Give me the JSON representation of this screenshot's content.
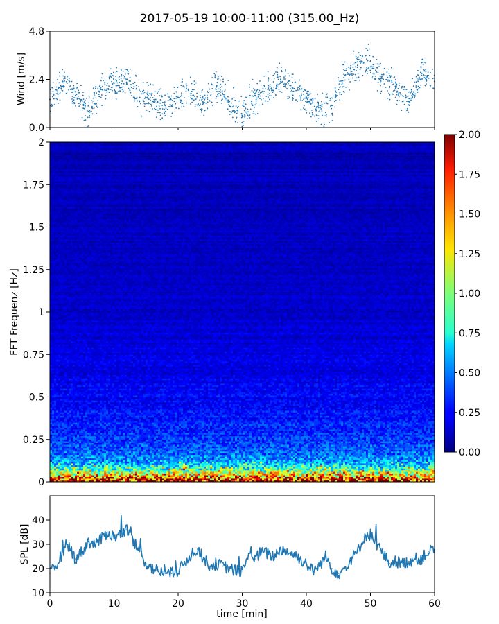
{
  "figure": {
    "title": "2017-05-19 10:00-11:00 (315.00_Hz)"
  },
  "chart_data": [
    {
      "type": "scatter",
      "name": "wind",
      "ylabel": "Wind [m/s]",
      "xlim": [
        0,
        60
      ],
      "ylim": [
        0,
        4.8
      ],
      "yticks": [
        0.0,
        2.4,
        4.8
      ],
      "ytick_labels": [
        "0.0",
        "2.4",
        "4.8"
      ],
      "xticks": [
        0,
        10,
        20,
        30,
        40,
        50,
        60
      ],
      "marker_color": "#1f77b4",
      "x": [
        0,
        2,
        4,
        6,
        8,
        10,
        12,
        14,
        16,
        18,
        20,
        22,
        24,
        26,
        28,
        30,
        32,
        34,
        36,
        38,
        40,
        42,
        44,
        46,
        48,
        50,
        52,
        54,
        56,
        58,
        60
      ],
      "y": [
        1.4,
        2.3,
        1.6,
        0.8,
        1.9,
        2.2,
        2.4,
        1.5,
        1.3,
        1.1,
        1.5,
        1.7,
        1.2,
        2.1,
        1.3,
        0.6,
        1.6,
        1.9,
        2.4,
        1.8,
        1.5,
        0.8,
        1.1,
        2.6,
        3.1,
        3.3,
        2.4,
        2.0,
        1.3,
        2.7,
        2.3
      ]
    },
    {
      "type": "heatmap",
      "name": "spectrogram",
      "ylabel": "FFT Frequenz [Hz]",
      "xlim": [
        0,
        60
      ],
      "ylim": [
        0,
        2
      ],
      "yticks": [
        0,
        0.25,
        0.5,
        0.75,
        1,
        1.25,
        1.5,
        1.75,
        2
      ],
      "ytick_labels": [
        "0",
        "0.25",
        "0.5",
        "0.75",
        "1",
        "1.25",
        "1.5",
        "1.75",
        "2"
      ],
      "colormap": "jet",
      "color_range": [
        0.0,
        2.0
      ],
      "colorbar_ticks": [
        "0.00",
        "0.25",
        "0.50",
        "0.75",
        "1.00",
        "1.25",
        "1.50",
        "1.75",
        "2.00"
      ],
      "colorbar_values": [
        0.0,
        0.25,
        0.5,
        0.75,
        1.0,
        1.25,
        1.5,
        1.75,
        2.0
      ],
      "freq_profile": {
        "freq_hz": [
          0.0,
          0.02,
          0.05,
          0.08,
          0.1,
          0.15,
          0.2,
          0.3,
          0.4,
          0.5,
          0.75,
          1.0,
          1.5,
          2.0
        ],
        "mean_value": [
          1.7,
          1.5,
          1.05,
          0.8,
          0.6,
          0.45,
          0.38,
          0.3,
          0.26,
          0.22,
          0.17,
          0.14,
          0.12,
          0.1
        ]
      }
    },
    {
      "type": "line",
      "name": "spl",
      "xlabel": "time [min]",
      "ylabel": "SPL [dB]",
      "xlim": [
        0,
        60
      ],
      "ylim": [
        10,
        50
      ],
      "yticks": [
        10,
        20,
        30,
        40
      ],
      "ytick_labels": [
        "10",
        "20",
        "30",
        "40"
      ],
      "xticks": [
        0,
        10,
        20,
        30,
        40,
        50,
        60
      ],
      "xtick_labels": [
        "0",
        "10",
        "20",
        "30",
        "40",
        "50",
        "60"
      ],
      "line_color": "#1f77b4",
      "x": [
        0,
        1,
        2,
        3,
        4,
        5,
        6,
        7,
        8,
        9,
        10,
        11,
        12,
        13,
        14,
        15,
        16,
        17,
        18,
        19,
        20,
        21,
        22,
        23,
        24,
        25,
        26,
        27,
        28,
        29,
        30,
        31,
        32,
        33,
        34,
        35,
        36,
        37,
        38,
        39,
        40,
        41,
        42,
        43,
        44,
        45,
        46,
        47,
        48,
        49,
        50,
        51,
        52,
        53,
        54,
        55,
        56,
        57,
        58,
        59,
        60
      ],
      "y": [
        18,
        21,
        27,
        29,
        24,
        27,
        31,
        30,
        32,
        35,
        33,
        34,
        36,
        31,
        27,
        22,
        20,
        19,
        18,
        18,
        19,
        22,
        26,
        28,
        24,
        21,
        22,
        21,
        20,
        19,
        19,
        26,
        24,
        27,
        26,
        25,
        28,
        27,
        26,
        24,
        22,
        19,
        21,
        25,
        20,
        18,
        20,
        24,
        27,
        33,
        34,
        30,
        26,
        22,
        23,
        22,
        23,
        24,
        24,
        27,
        28
      ]
    }
  ]
}
